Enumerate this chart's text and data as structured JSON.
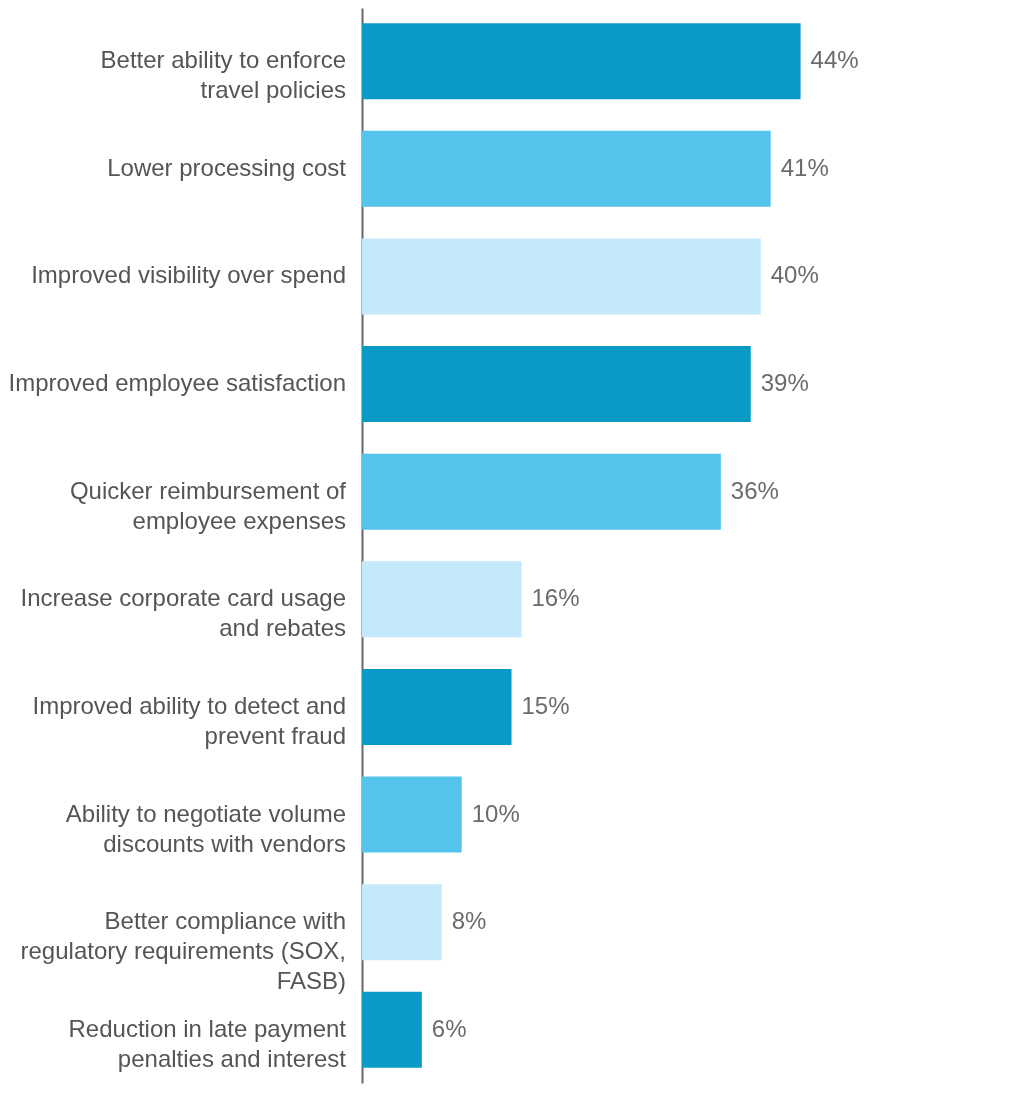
{
  "chart_data": {
    "type": "bar",
    "orientation": "horizontal",
    "categories": [
      "Better ability to enforce travel policies",
      "Lower processing cost",
      "Improved visibility over spend",
      "Improved employee satisfaction",
      "Quicker reimbursement of employee expenses",
      "Increase corporate card usage and rebates",
      "Improved ability to detect and prevent fraud",
      "Ability to negotiate volume discounts with vendors",
      "Better compliance with regulatory requirements (SOX, FASB)",
      "Reduction in late payment penalties and interest"
    ],
    "values": [
      44,
      41,
      40,
      39,
      36,
      16,
      15,
      10,
      8,
      6
    ],
    "value_labels": [
      "44%",
      "41%",
      "40%",
      "39%",
      "36%",
      "16%",
      "15%",
      "10%",
      "8%",
      "6%"
    ],
    "colors": [
      "#0a9ac6",
      "#55c4ec",
      "#c4e9fb",
      "#0a9ac6",
      "#55c4ec",
      "#c4e9fb",
      "#0a9ac6",
      "#55c4ec",
      "#c4e9fb",
      "#0a9ac6"
    ],
    "grid": false
  }
}
